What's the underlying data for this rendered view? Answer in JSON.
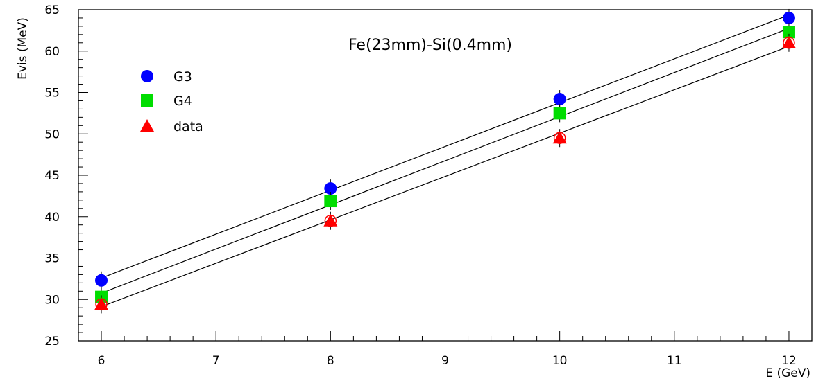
{
  "chart_data": {
    "type": "scatter",
    "title": "Fe(23mm)-Si(0.4mm)",
    "xlabel": "E (GeV)",
    "ylabel": "Evis (MeV)",
    "xlim": [
      5.8,
      12.2
    ],
    "ylim": [
      25,
      65
    ],
    "xticks": [
      6,
      7,
      8,
      9,
      10,
      11,
      12
    ],
    "yticks": [
      25,
      30,
      35,
      40,
      45,
      50,
      55,
      60,
      65
    ],
    "xtick_labels": [
      "6",
      "7",
      "8",
      "9",
      "10",
      "11",
      "12"
    ],
    "ytick_labels": [
      "25",
      "30",
      "35",
      "40",
      "45",
      "50",
      "55",
      "60",
      "65"
    ],
    "grid": false,
    "legend_position": "top-left",
    "series": [
      {
        "name": "G3",
        "marker": "circle",
        "color": "#0000ff",
        "x": [
          6,
          8,
          10,
          12
        ],
        "y": [
          32.3,
          43.4,
          54.2,
          64.0
        ],
        "fit_line": true
      },
      {
        "name": "G4",
        "marker": "square",
        "color": "#00dd00",
        "x": [
          6,
          8,
          10,
          12
        ],
        "y": [
          30.3,
          41.9,
          52.5,
          62.3
        ],
        "fit_line": true
      },
      {
        "name": "data",
        "marker": "triangle",
        "color": "#ff0000",
        "x": [
          6,
          8,
          10,
          12
        ],
        "y": [
          29.4,
          39.5,
          49.5,
          61.0
        ],
        "fit_line": true
      }
    ]
  }
}
